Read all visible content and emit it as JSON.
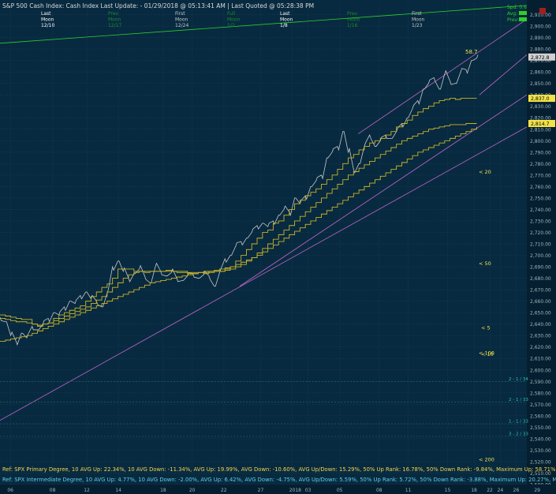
{
  "header": {
    "title": "S&P 500 Cash Index:  Cash Index  Last Update:  - 01/29/2018 @ 05:13:41 AM  |  Last Quoted @ 05:28:38 PM",
    "moon_table": [
      {
        "col": "c1",
        "top": "Last",
        "mid": "Moon",
        "bot": "12/10",
        "color": "#ffffff"
      },
      {
        "col": "c2",
        "top": "Prev",
        "mid": "Moon",
        "bot": "12/17",
        "color": "#1c8a2a"
      },
      {
        "col": "c3",
        "top": "First",
        "mid": "Moon",
        "bot": "12/24",
        "color": "#c8c8c8"
      },
      {
        "col": "c4",
        "top": "Full",
        "mid": "Moon",
        "bot": "1/2",
        "color": "#1c8a2a"
      },
      {
        "col": "c5",
        "top": "Last",
        "mid": "Moon",
        "bot": "1/8",
        "color": "#ffffff"
      },
      {
        "col": "c6",
        "top": "Prev",
        "mid": "Moon",
        "bot": "1/16",
        "color": "#1c8a2a"
      },
      {
        "col": "c7",
        "top": "First",
        "mid": "Moon",
        "bot": "1/23",
        "color": "#c8c8c8"
      }
    ],
    "right_box": {
      "spd": "Spd: 0.6",
      "avg": "Avg:",
      "prev": "Prev:"
    }
  },
  "annotations": {
    "peak_label": "58.7",
    "refs": [
      {
        "text": "Ref: SPX Primary Degree, 10 AVG Up: 22.34%, 10 AVG Down: -11.34%, AVG Up: 19.99%, AVG Down: -10.60%, AVG Up/Down: 15.29%, 50%  Up Rank: 16.78%, 50% Down Rank: -9.84%, Maximum Up: 58.71%, Maximum",
        "color": "#f0d64a"
      },
      {
        "text": "Ref: SPX Intermediate Degree, 10 AVG Up: 4.77%, 10 AVG Down: -2.00%, AVG Up: 6.42%, AVG Down: -4.75%, AVG Up/Down: 5.59%, 50%  Up Rank: 5.72%, 50% Down Rank: -3.88%, Maximum Up: 20.27%, Maximum Do",
        "color": "#5fd0e8"
      }
    ],
    "ma_labels": [
      {
        "text": "< 5",
        "y": 2637,
        "x_date": "1/26"
      },
      {
        "text": "< 10",
        "y": 2614,
        "x_date": "1/26"
      },
      {
        "text": "< 20",
        "y": 2773,
        "x_date": "1/27"
      },
      {
        "text": "< 50",
        "y": 2693,
        "x_date": "1/27"
      },
      {
        "text": "< 100",
        "y": 2615,
        "x_date": "1/27"
      },
      {
        "text": "< 200",
        "y": 2522,
        "x_date": "1/27"
      }
    ],
    "fib_labels": [
      {
        "text": "2 - 1 / 34",
        "y": 2590
      },
      {
        "text": "2 - 1 / 33",
        "y": 2572
      },
      {
        "text": "1 - 1 / 33",
        "y": 2553
      },
      {
        "text": "3 - 2 / 33",
        "y": 2542
      }
    ],
    "price_tags": [
      {
        "text": "2,872.8",
        "y": 2873,
        "color": "#d0d0d0"
      },
      {
        "text": "2,837.0",
        "y": 2837,
        "color": "#f2e24a"
      },
      {
        "text": "2,814.7",
        "y": 2815,
        "color": "#f2e24a"
      }
    ]
  },
  "chart_data": {
    "type": "line",
    "title": "S&P 500 Cash Index:  Cash Index",
    "xlabel": "",
    "ylabel": "",
    "ylim": [
      2500,
      2920
    ],
    "y_ticks": [
      "2,500.00",
      "2,510.00",
      "2,520.00",
      "2,530.00",
      "2,540.00",
      "2,550.00",
      "2,560.00",
      "2,570.00",
      "2,580.00",
      "2,590.00",
      "2,600.00",
      "2,610.00",
      "2,620.00",
      "2,630.00",
      "2,640.00",
      "2,650.00",
      "2,660.00",
      "2,670.00",
      "2,680.00",
      "2,690.00",
      "2,700.00",
      "2,710.00",
      "2,720.00",
      "2,730.00",
      "2,740.00",
      "2,750.00",
      "2,760.00",
      "2,770.00",
      "2,780.00",
      "2,790.00",
      "2,800.00",
      "2,810.00",
      "2,820.00",
      "2,830.00",
      "2,840.00",
      "2,850.00",
      "2,860.00",
      "2,870.00",
      "2,880.00",
      "2,890.00",
      "2,900.00",
      "2,910.00"
    ],
    "x_ticks": [
      "06",
      "08",
      "12",
      "14",
      "18",
      "20",
      "22",
      "27",
      "2018",
      "03",
      "05",
      "08",
      "11",
      "15",
      "18",
      "22",
      "24",
      "26",
      "29"
    ],
    "x_tick_pos": [
      0.02,
      0.1,
      0.165,
      0.225,
      0.31,
      0.365,
      0.425,
      0.495,
      0.555,
      0.585,
      0.645,
      0.72,
      0.775,
      0.85,
      0.9,
      0.93,
      0.95,
      0.98,
      1.02
    ],
    "grid": true,
    "series": [
      {
        "color": "#c8c8c8",
        "values": [
          2646,
          2642,
          2630,
          2625,
          2632,
          2628,
          2638,
          2635,
          2640,
          2645,
          2650,
          2648,
          2655,
          2660,
          2658,
          2665,
          2668,
          2662,
          2660,
          2655,
          2667,
          2690,
          2695,
          2686,
          2680,
          2684,
          2688,
          2682,
          2676,
          2690,
          2686,
          2682,
          2685,
          2680,
          2678,
          2682,
          2684,
          2680,
          2683,
          2682,
          2673,
          2685,
          2697,
          2700,
          2708,
          2712,
          2715,
          2720,
          2726,
          2728,
          2725,
          2730,
          2735,
          2740,
          2738,
          2750,
          2745,
          2752,
          2760,
          2765,
          2770,
          2785,
          2790,
          2795,
          2808,
          2790,
          2775,
          2780,
          2795,
          2805,
          2795,
          2800,
          2805,
          2802,
          2808,
          2815,
          2820,
          2828,
          2835,
          2845,
          2850,
          2855,
          2845,
          2858,
          2852,
          2850,
          2860,
          2862,
          2870,
          2872
        ]
      },
      {
        "color": "#c8b428",
        "values": [
          2648,
          2647,
          2646,
          2645,
          2644,
          2644,
          2640,
          2638,
          2640,
          2641,
          2645,
          2648,
          2650,
          2652,
          2654,
          2656,
          2660,
          2664,
          2668,
          2672,
          2675,
          2680,
          2688,
          2688,
          2688,
          2686,
          2686,
          2685,
          2686,
          2686,
          2686,
          2687,
          2686,
          2686,
          2686,
          2684,
          2684,
          2685,
          2684,
          2686,
          2686,
          2686,
          2688,
          2690,
          2695,
          2700,
          2705,
          2710,
          2715,
          2720,
          2722,
          2728,
          2730,
          2735,
          2740,
          2745,
          2748,
          2752,
          2755,
          2758,
          2762,
          2766,
          2770,
          2775,
          2780,
          2785,
          2788,
          2792,
          2795,
          2798,
          2800,
          2802,
          2805,
          2808,
          2812,
          2815,
          2818,
          2822,
          2825,
          2828,
          2830,
          2833,
          2835,
          2836,
          2837,
          2836,
          2837,
          2837,
          2837,
          2837
        ]
      },
      {
        "color": "#c8b428",
        "values": [
          2645,
          2644,
          2643,
          2642,
          2642,
          2641,
          2640,
          2639,
          2640,
          2641,
          2643,
          2645,
          2647,
          2649,
          2651,
          2653,
          2655,
          2658,
          2661,
          2664,
          2668,
          2672,
          2676,
          2680,
          2683,
          2685,
          2686,
          2686,
          2686,
          2686,
          2686,
          2686,
          2686,
          2685,
          2685,
          2685,
          2685,
          2685,
          2685,
          2685,
          2686,
          2686,
          2687,
          2688,
          2690,
          2692,
          2695,
          2698,
          2702,
          2706,
          2710,
          2714,
          2718,
          2722,
          2726,
          2730,
          2734,
          2738,
          2742,
          2746,
          2750,
          2754,
          2758,
          2762,
          2766,
          2770,
          2773,
          2776,
          2779,
          2782,
          2785,
          2788,
          2791,
          2794,
          2797,
          2800,
          2802,
          2804,
          2806,
          2808,
          2810,
          2811,
          2812,
          2813,
          2814,
          2814,
          2814,
          2815,
          2815,
          2815
        ]
      },
      {
        "color": "#c8b428",
        "values": [
          2625,
          2626,
          2627,
          2628,
          2629,
          2630,
          2632,
          2634,
          2636,
          2638,
          2640,
          2642,
          2644,
          2646,
          2648,
          2650,
          2652,
          2654,
          2656,
          2658,
          2660,
          2662,
          2664,
          2666,
          2668,
          2670,
          2672,
          2674,
          2676,
          2677,
          2678,
          2679,
          2680,
          2681,
          2682,
          2683,
          2684,
          2685,
          2686,
          2686,
          2687,
          2688,
          2689,
          2690,
          2692,
          2694,
          2696,
          2698,
          2700,
          2703,
          2706,
          2709,
          2712,
          2715,
          2718,
          2721,
          2724,
          2727,
          2730,
          2733,
          2736,
          2739,
          2742,
          2745,
          2748,
          2751,
          2754,
          2757,
          2760,
          2763,
          2766,
          2769,
          2772,
          2775,
          2778,
          2781,
          2784,
          2787,
          2790,
          2792,
          2794,
          2796,
          2798,
          2800,
          2802,
          2804,
          2806,
          2808,
          2810,
          2812
        ]
      }
    ],
    "trend_lines": [
      {
        "color": "#2bd12b",
        "from": [
          0.0,
          2885
        ],
        "to": [
          1.0,
          2918
        ]
      },
      {
        "color": "#c266c8",
        "from": [
          0.0,
          2556
        ],
        "to": [
          1.0,
          2812
        ]
      },
      {
        "color": "#c266c8",
        "from": [
          0.455,
          2673
        ],
        "to": [
          1.0,
          2840
        ]
      },
      {
        "color": "#c266c8",
        "from": [
          0.68,
          2806
        ],
        "to": [
          1.0,
          2906
        ]
      },
      {
        "color": "#c266c8",
        "from": [
          0.91,
          2840
        ],
        "to": [
          1.0,
          2875
        ]
      }
    ]
  }
}
